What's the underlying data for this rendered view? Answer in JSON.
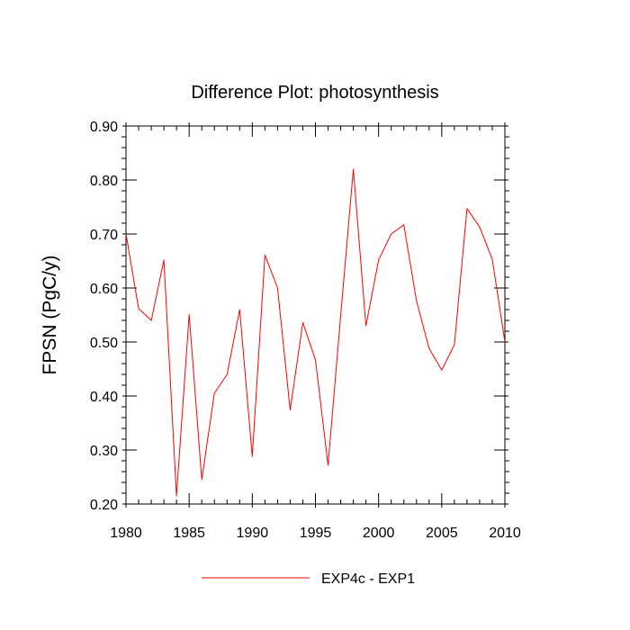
{
  "chart_data": {
    "type": "line",
    "title": "Difference Plot: photosynthesis",
    "xlabel": "",
    "ylabel": "FPSN  (PgC/y)",
    "xlim": [
      1980,
      2010
    ],
    "ylim": [
      0.2,
      0.9
    ],
    "x_ticks": [
      1980,
      1985,
      1990,
      1995,
      2000,
      2005,
      2010
    ],
    "y_ticks": [
      "0.20",
      "0.30",
      "0.40",
      "0.50",
      "0.60",
      "0.70",
      "0.80",
      "0.90"
    ],
    "grid": false,
    "legend_position": "bottom",
    "series": [
      {
        "name": "EXP4c - EXP1",
        "color": "#ff0000",
        "x": [
          1980,
          1981,
          1982,
          1983,
          1984,
          1985,
          1986,
          1987,
          1988,
          1989,
          1990,
          1991,
          1992,
          1993,
          1994,
          1995,
          1996,
          1997,
          1998,
          1999,
          2000,
          2001,
          2002,
          2003,
          2004,
          2005,
          2006,
          2007,
          2008,
          2009,
          2010
        ],
        "y": [
          0.7,
          0.562,
          0.54,
          0.652,
          0.215,
          0.551,
          0.245,
          0.405,
          0.44,
          0.56,
          0.288,
          0.661,
          0.6,
          0.374,
          0.536,
          0.467,
          0.272,
          0.55,
          0.82,
          0.53,
          0.652,
          0.7,
          0.717,
          0.576,
          0.488,
          0.448,
          0.495,
          0.747,
          0.713,
          0.653,
          0.5
        ]
      }
    ]
  }
}
